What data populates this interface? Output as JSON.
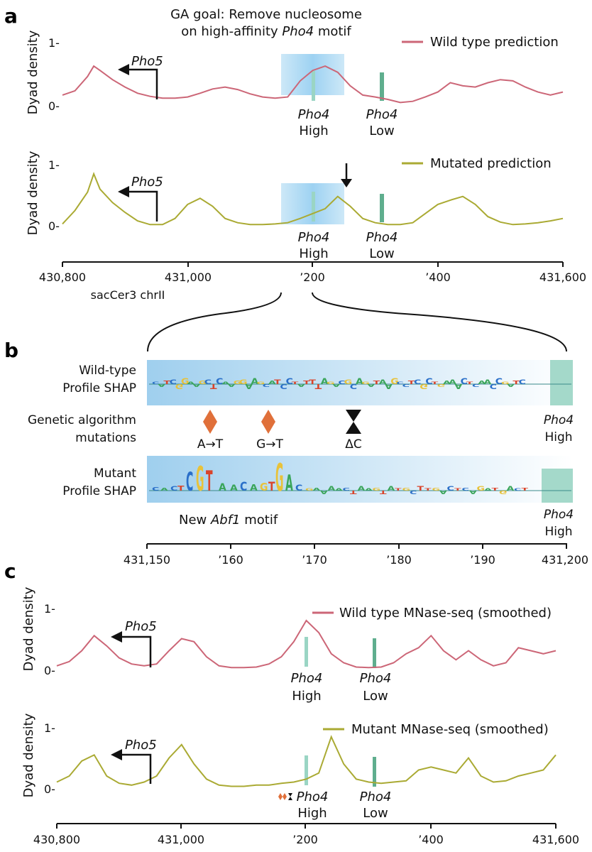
{
  "colors": {
    "wild": "#cc6677",
    "mutant": "#aaaa33",
    "pho4_high": "#9ad5c4",
    "pho4_low": "#5fae8e",
    "highlight": "#a8d4ee",
    "mutation": "#e0703a"
  },
  "panel_a": {
    "letter": "a",
    "title_line1": "GA goal: Remove nucleosome",
    "title_line2_pre": "on high-affinity ",
    "title_line2_ital": "Pho4",
    "title_line2_post": " motif",
    "ylabel": "Dyad density",
    "y_tick_top": "1-",
    "y_tick_bottom": "0-",
    "gene_label": "Pho5",
    "motif_name": "Pho4",
    "high_label": "High",
    "low_label": "Low",
    "legend_top": "Wild type prediction",
    "legend_bottom": "Mutated prediction",
    "x_ticks": [
      "430,800",
      "431,000",
      "’200",
      "’400",
      "431,600"
    ],
    "x_sublabel": "sacCer3 chrII"
  },
  "panel_b": {
    "letter": "b",
    "wt_label_1": "Wild-type",
    "wt_label_2": "Profile SHAP",
    "ga_label_1": "Genetic algorithm",
    "ga_label_2": "mutations",
    "mut_label_1": "Mutant",
    "mut_label_2": "Profile SHAP",
    "mutations": [
      "A→T",
      "G→T",
      "ΔC"
    ],
    "motif_name": "Pho4",
    "high_label": "High",
    "new_motif_pre": "New ",
    "new_motif_ital": "Abf1",
    "new_motif_post": " motif",
    "x_ticks": [
      "431,150",
      "’160",
      "’170",
      "’180",
      "’190",
      "431,200"
    ]
  },
  "panel_c": {
    "letter": "c",
    "ylabel": "Dyad density",
    "y_tick_top": "1-",
    "y_tick_bottom": "0-",
    "gene_label": "Pho5",
    "motif_name": "Pho4",
    "high_label": "High",
    "low_label": "Low",
    "legend_top": "Wild type MNase-seq (smoothed)",
    "legend_bottom": "Mutant MNase-seq (smoothed)",
    "x_ticks": [
      "430,800",
      "431,000",
      "’200",
      "’400",
      "431,600"
    ]
  },
  "chart_data": [
    {
      "type": "line",
      "panel": "a-top",
      "series": [
        {
          "name": "Wild type prediction",
          "x": [
            430800,
            430820,
            430840,
            430850,
            430860,
            430880,
            430900,
            430920,
            430940,
            430960,
            430980,
            431000,
            431020,
            431040,
            431060,
            431080,
            431100,
            431120,
            431140,
            431160,
            431180,
            431200,
            431220,
            431240,
            431260,
            431280,
            431300,
            431320,
            431340,
            431360,
            431380,
            431400,
            431420,
            431440,
            431460,
            431480,
            431500,
            431520,
            431540,
            431560,
            431580,
            431600
          ],
          "y": [
            0.15,
            0.22,
            0.45,
            0.62,
            0.55,
            0.4,
            0.28,
            0.18,
            0.13,
            0.1,
            0.1,
            0.12,
            0.18,
            0.25,
            0.28,
            0.24,
            0.17,
            0.12,
            0.1,
            0.12,
            0.38,
            0.55,
            0.62,
            0.52,
            0.3,
            0.15,
            0.12,
            0.08,
            0.03,
            0.05,
            0.12,
            0.2,
            0.35,
            0.3,
            0.28,
            0.35,
            0.4,
            0.38,
            0.28,
            0.2,
            0.15,
            0.2
          ]
        }
      ],
      "ylim": [
        0,
        1
      ],
      "xlim": [
        430800,
        431600
      ]
    },
    {
      "type": "line",
      "panel": "a-bottom",
      "series": [
        {
          "name": "Mutated prediction",
          "x": [
            430800,
            430820,
            430840,
            430850,
            430860,
            430880,
            430900,
            430920,
            430940,
            430960,
            430980,
            431000,
            431020,
            431040,
            431060,
            431080,
            431100,
            431120,
            431140,
            431160,
            431180,
            431200,
            431220,
            431240,
            431260,
            431280,
            431300,
            431320,
            431340,
            431360,
            431380,
            431400,
            431420,
            431440,
            431460,
            431480,
            431500,
            431520,
            431540,
            431560,
            431580,
            431600
          ],
          "y": [
            0.03,
            0.25,
            0.55,
            0.85,
            0.6,
            0.38,
            0.22,
            0.08,
            0.02,
            0.02,
            0.12,
            0.35,
            0.45,
            0.32,
            0.12,
            0.05,
            0.02,
            0.02,
            0.03,
            0.05,
            0.12,
            0.2,
            0.28,
            0.48,
            0.32,
            0.12,
            0.05,
            0.02,
            0.02,
            0.05,
            0.2,
            0.35,
            0.42,
            0.48,
            0.35,
            0.15,
            0.06,
            0.02,
            0.03,
            0.05,
            0.08,
            0.12
          ]
        }
      ],
      "ylim": [
        0,
        1
      ],
      "xlim": [
        430800,
        431600
      ]
    },
    {
      "type": "line",
      "panel": "c-top",
      "series": [
        {
          "name": "Wild type MNase-seq (smoothed)",
          "x": [
            430800,
            430820,
            430840,
            430860,
            430880,
            430900,
            430920,
            430940,
            430960,
            430980,
            431000,
            431020,
            431040,
            431060,
            431080,
            431100,
            431120,
            431140,
            431160,
            431180,
            431200,
            431220,
            431240,
            431260,
            431280,
            431300,
            431320,
            431340,
            431360,
            431380,
            431400,
            431420,
            431440,
            431460,
            431480,
            431500,
            431520,
            431540,
            431560,
            431580,
            431600
          ],
          "y": [
            0.05,
            0.12,
            0.3,
            0.55,
            0.38,
            0.18,
            0.08,
            0.05,
            0.08,
            0.3,
            0.5,
            0.45,
            0.2,
            0.05,
            0.02,
            0.02,
            0.03,
            0.08,
            0.2,
            0.45,
            0.8,
            0.6,
            0.25,
            0.1,
            0.03,
            0.02,
            0.03,
            0.1,
            0.25,
            0.35,
            0.55,
            0.3,
            0.15,
            0.3,
            0.15,
            0.05,
            0.1,
            0.35,
            0.3,
            0.25,
            0.3
          ]
        }
      ],
      "ylim": [
        0,
        1
      ],
      "xlim": [
        430800,
        431600
      ]
    },
    {
      "type": "line",
      "panel": "c-bottom",
      "series": [
        {
          "name": "Mutant MNase-seq (smoothed)",
          "x": [
            430800,
            430820,
            430840,
            430860,
            430880,
            430900,
            430920,
            430940,
            430960,
            430980,
            431000,
            431020,
            431040,
            431060,
            431080,
            431100,
            431120,
            431140,
            431160,
            431180,
            431200,
            431220,
            431240,
            431260,
            431280,
            431300,
            431320,
            431340,
            431360,
            431380,
            431400,
            431420,
            431440,
            431460,
            431480,
            431500,
            431520,
            431540,
            431560,
            431580,
            431600
          ],
          "y": [
            0.1,
            0.2,
            0.45,
            0.55,
            0.2,
            0.08,
            0.05,
            0.1,
            0.2,
            0.5,
            0.72,
            0.4,
            0.15,
            0.05,
            0.03,
            0.03,
            0.05,
            0.05,
            0.08,
            0.1,
            0.15,
            0.25,
            0.85,
            0.4,
            0.15,
            0.1,
            0.08,
            0.1,
            0.12,
            0.3,
            0.35,
            0.3,
            0.25,
            0.5,
            0.2,
            0.1,
            0.12,
            0.2,
            0.25,
            0.3,
            0.55
          ]
        }
      ],
      "ylim": [
        0,
        1
      ],
      "xlim": [
        430800,
        431600
      ]
    }
  ]
}
